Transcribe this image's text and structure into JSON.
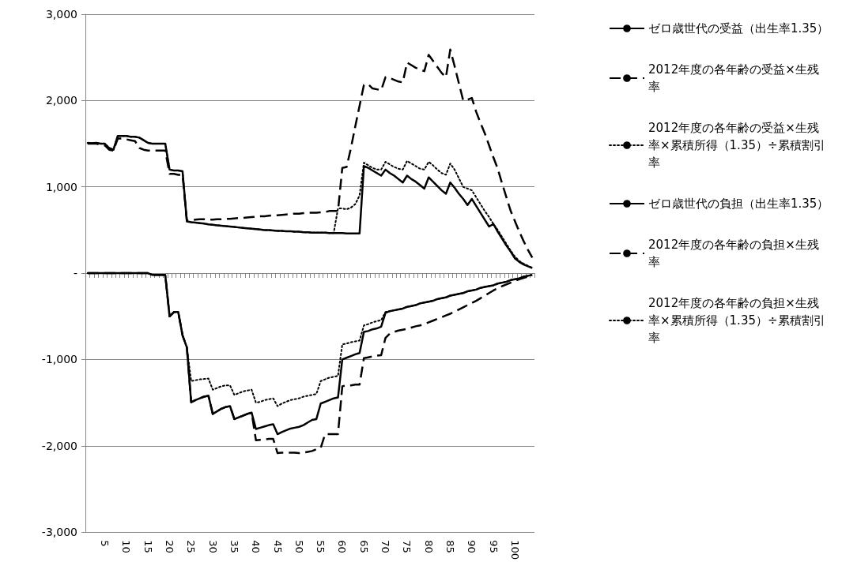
{
  "chart_data": {
    "type": "line",
    "categories": [
      null,
      null,
      null,
      null,
      "5",
      null,
      null,
      null,
      null,
      "10",
      null,
      null,
      null,
      null,
      "15",
      null,
      null,
      null,
      null,
      "20",
      null,
      null,
      null,
      null,
      "25",
      null,
      null,
      null,
      null,
      "30",
      null,
      null,
      null,
      null,
      "35",
      null,
      null,
      null,
      null,
      "40",
      null,
      null,
      null,
      null,
      "45",
      null,
      null,
      null,
      null,
      "50",
      null,
      null,
      null,
      null,
      "55",
      null,
      null,
      null,
      null,
      "60",
      null,
      null,
      null,
      null,
      "65",
      null,
      null,
      null,
      null,
      "70",
      null,
      null,
      null,
      null,
      "75",
      null,
      null,
      null,
      null,
      "80",
      null,
      null,
      null,
      null,
      "85",
      null,
      null,
      null,
      null,
      "90",
      null,
      null,
      null,
      null,
      "95",
      null,
      null,
      null,
      null,
      "100",
      null,
      null,
      null,
      null
    ],
    "ylim": [
      -3000,
      3000
    ],
    "yticks": [
      {
        "value": -3000,
        "label": "-3,000"
      },
      {
        "value": -2000,
        "label": "-2,000"
      },
      {
        "value": -1000,
        "label": "-1,000"
      },
      {
        "value": 0,
        "label": "-"
      },
      {
        "value": 1000,
        "label": "1,000"
      },
      {
        "value": 2000,
        "label": "2,000"
      },
      {
        "value": 3000,
        "label": "3,000"
      }
    ],
    "grid": "y",
    "legend": "right",
    "marker": "none",
    "series": [
      {
        "name": "ゼロ歳世代の受益（出生率1.35）",
        "color": "#000000",
        "line_style": "solid",
        "values": [
          1510,
          1505,
          1510,
          1500,
          1500,
          1450,
          1430,
          1590,
          1590,
          1590,
          1580,
          1580,
          1570,
          1540,
          1510,
          1500,
          1500,
          1500,
          1500,
          1200,
          1190,
          1190,
          1180,
          600,
          590,
          585,
          580,
          575,
          565,
          560,
          555,
          550,
          545,
          540,
          535,
          530,
          525,
          520,
          515,
          510,
          505,
          500,
          500,
          495,
          490,
          490,
          485,
          485,
          480,
          480,
          475,
          475,
          470,
          470,
          470,
          470,
          465,
          465,
          465,
          465,
          460,
          460,
          460,
          460,
          1240,
          1220,
          1190,
          1160,
          1130,
          1200,
          1160,
          1130,
          1090,
          1050,
          1130,
          1090,
          1060,
          1020,
          980,
          1110,
          1060,
          1010,
          960,
          920,
          1050,
          990,
          920,
          860,
          790,
          860,
          780,
          700,
          620,
          540,
          570,
          480,
          400,
          320,
          250,
          170,
          130,
          100,
          80,
          60
        ]
      },
      {
        "name": "2012年度の各年齢の受益×生残率",
        "color": "#000000",
        "line_style": "dashed",
        "values": [
          1500,
          1500,
          1500,
          1490,
          1480,
          1430,
          1420,
          1560,
          1560,
          1550,
          1540,
          1530,
          1450,
          1430,
          1420,
          1420,
          1420,
          1420,
          1420,
          1150,
          1150,
          1140,
          1140,
          610,
          615,
          620,
          625,
          625,
          620,
          620,
          625,
          625,
          630,
          630,
          635,
          640,
          640,
          645,
          650,
          655,
          660,
          660,
          665,
          670,
          670,
          675,
          680,
          685,
          690,
          690,
          695,
          700,
          700,
          700,
          705,
          710,
          720,
          720,
          720,
          1220,
          1230,
          1450,
          1700,
          1940,
          2180,
          2190,
          2140,
          2130,
          2120,
          2270,
          2260,
          2240,
          2220,
          2210,
          2440,
          2410,
          2380,
          2360,
          2340,
          2530,
          2460,
          2390,
          2320,
          2270,
          2590,
          2400,
          2200,
          2000,
          2010,
          2030,
          1870,
          1740,
          1620,
          1480,
          1340,
          1210,
          1040,
          880,
          720,
          600,
          480,
          370,
          270,
          180
        ]
      },
      {
        "name": "2012年度の各年齢の受益×生残率×累積所得（1.35）÷累積割引率",
        "color": "#000000",
        "line_style": "dotted",
        "values": [
          1510,
          1505,
          1510,
          1500,
          1500,
          1450,
          1430,
          1590,
          1590,
          1590,
          1580,
          1580,
          1570,
          1540,
          1510,
          1500,
          1500,
          1500,
          1500,
          1200,
          1190,
          1190,
          1180,
          600,
          590,
          585,
          580,
          575,
          565,
          560,
          555,
          550,
          545,
          540,
          535,
          530,
          525,
          520,
          515,
          510,
          505,
          500,
          500,
          495,
          490,
          490,
          485,
          485,
          480,
          480,
          475,
          475,
          470,
          470,
          470,
          470,
          465,
          465,
          750,
          750,
          740,
          760,
          800,
          900,
          1280,
          1250,
          1220,
          1200,
          1200,
          1290,
          1260,
          1230,
          1210,
          1200,
          1300,
          1270,
          1240,
          1210,
          1200,
          1290,
          1250,
          1200,
          1160,
          1140,
          1270,
          1200,
          1100,
          1000,
          980,
          960,
          880,
          800,
          720,
          650,
          570,
          500,
          420,
          340,
          260,
          190,
          140,
          110,
          85,
          60
        ]
      },
      {
        "name": "ゼロ歳世代の負担（出生率1.35）",
        "color": "#000000",
        "line_style": "solid",
        "values": [
          0,
          0,
          0,
          0,
          0,
          0,
          0,
          0,
          0,
          0,
          0,
          0,
          0,
          0,
          0,
          -20,
          -20,
          -20,
          -20,
          -500,
          -450,
          -450,
          -720,
          -860,
          -1495,
          -1470,
          -1450,
          -1430,
          -1420,
          -1630,
          -1600,
          -1570,
          -1550,
          -1540,
          -1690,
          -1670,
          -1650,
          -1630,
          -1615,
          -1805,
          -1790,
          -1775,
          -1760,
          -1750,
          -1865,
          -1840,
          -1820,
          -1800,
          -1790,
          -1780,
          -1760,
          -1730,
          -1700,
          -1690,
          -1510,
          -1490,
          -1470,
          -1450,
          -1440,
          -1000,
          -980,
          -960,
          -940,
          -925,
          -680,
          -670,
          -650,
          -640,
          -620,
          -460,
          -440,
          -430,
          -420,
          -410,
          -390,
          -380,
          -370,
          -350,
          -340,
          -330,
          -320,
          -300,
          -290,
          -280,
          -260,
          -250,
          -240,
          -230,
          -210,
          -200,
          -190,
          -170,
          -160,
          -150,
          -140,
          -120,
          -110,
          -100,
          -80,
          -70,
          -60,
          -40,
          -30,
          -20
        ]
      },
      {
        "name": "2012年度の各年齢の負担×生残率",
        "color": "#000000",
        "line_style": "dashed",
        "values": [
          0,
          0,
          0,
          0,
          0,
          0,
          0,
          0,
          0,
          0,
          0,
          0,
          0,
          0,
          0,
          -20,
          -20,
          -20,
          -20,
          -500,
          -450,
          -450,
          -720,
          -860,
          -1495,
          -1470,
          -1450,
          -1430,
          -1420,
          -1630,
          -1600,
          -1570,
          -1550,
          -1540,
          -1690,
          -1670,
          -1650,
          -1630,
          -1615,
          -1935,
          -1930,
          -1925,
          -1920,
          -1920,
          -2085,
          -2080,
          -2080,
          -2080,
          -2080,
          -2085,
          -2080,
          -2070,
          -2060,
          -2040,
          -2025,
          -1865,
          -1865,
          -1865,
          -1865,
          -1310,
          -1300,
          -1300,
          -1290,
          -1290,
          -985,
          -975,
          -965,
          -955,
          -950,
          -750,
          -700,
          -680,
          -665,
          -655,
          -645,
          -630,
          -615,
          -605,
          -590,
          -570,
          -550,
          -530,
          -510,
          -490,
          -470,
          -445,
          -420,
          -395,
          -370,
          -345,
          -320,
          -290,
          -260,
          -230,
          -200,
          -175,
          -150,
          -130,
          -110,
          -90,
          -70,
          -55,
          -40,
          -30
        ]
      },
      {
        "name": "2012年度の各年齢の負担×生残率×累積所得（1.35）÷累積割引率",
        "color": "#000000",
        "line_style": "dotted",
        "values": [
          0,
          0,
          0,
          0,
          0,
          0,
          0,
          0,
          0,
          0,
          0,
          0,
          0,
          0,
          0,
          -20,
          -20,
          -20,
          -20,
          -500,
          -450,
          -450,
          -720,
          -860,
          -1250,
          -1240,
          -1230,
          -1225,
          -1220,
          -1350,
          -1330,
          -1310,
          -1300,
          -1300,
          -1410,
          -1390,
          -1370,
          -1360,
          -1350,
          -1500,
          -1490,
          -1470,
          -1460,
          -1450,
          -1540,
          -1510,
          -1490,
          -1470,
          -1460,
          -1450,
          -1430,
          -1420,
          -1410,
          -1400,
          -1250,
          -1230,
          -1210,
          -1200,
          -1190,
          -825,
          -815,
          -800,
          -790,
          -780,
          -605,
          -590,
          -570,
          -555,
          -545,
          -450,
          -440,
          -430,
          -420,
          -410,
          -390,
          -380,
          -370,
          -350,
          -340,
          -330,
          -320,
          -300,
          -290,
          -280,
          -260,
          -250,
          -240,
          -230,
          -210,
          -200,
          -190,
          -170,
          -160,
          -150,
          -140,
          -120,
          -110,
          -100,
          -80,
          -70,
          -60,
          -40,
          -30,
          -20
        ]
      }
    ]
  }
}
